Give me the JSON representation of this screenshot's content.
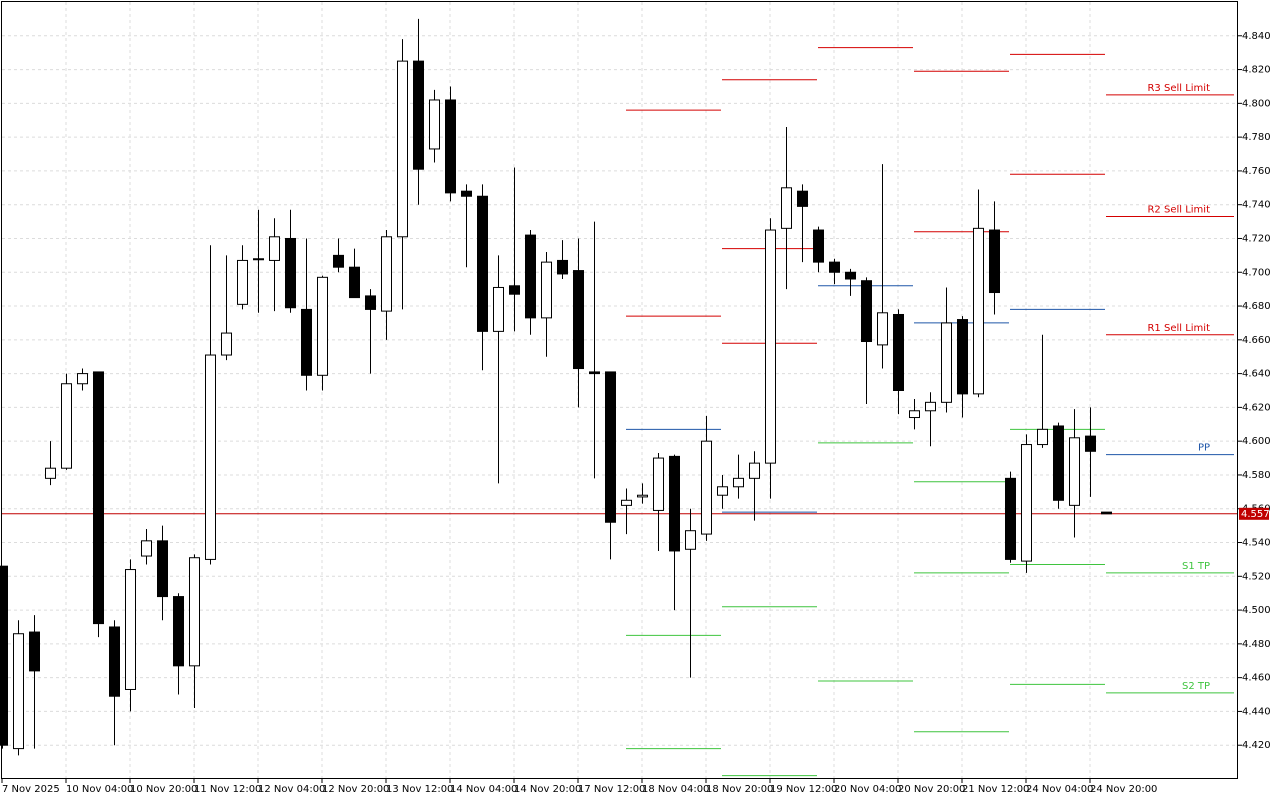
{
  "chart_data": {
    "type": "candlestick",
    "categories": [
      "7 Nov 2025",
      null,
      null,
      null,
      "10 Nov 04:00",
      null,
      null,
      null,
      "10 Nov 20:00",
      null,
      null,
      null,
      "11 Nov 12:00",
      null,
      null,
      null,
      "12 Nov 04:00",
      null,
      null,
      null,
      "12 Nov 20:00",
      null,
      null,
      null,
      "13 Nov 12:00",
      null,
      null,
      null,
      "14 Nov 04:00",
      null,
      null,
      null,
      "14 Nov 20:00",
      null,
      null,
      null,
      "17 Nov 12:00",
      null,
      null,
      null,
      "18 Nov 04:00",
      null,
      null,
      null,
      "18 Nov 20:00",
      null,
      null,
      null,
      "19 Nov 12:00",
      null,
      null,
      null,
      "20 Nov 04:00",
      null,
      null,
      null,
      "20 Nov 20:00",
      null,
      null,
      null,
      "21 Nov 12:00",
      null,
      null,
      null,
      "24 Nov 04:00",
      null,
      null,
      null,
      "24 Nov 20:00",
      null
    ],
    "open": [
      4.526,
      4.418,
      4.487,
      4.578,
      4.584,
      4.634,
      4.641,
      4.49,
      4.453,
      4.532,
      4.541,
      4.508,
      4.467,
      4.53,
      4.651,
      4.681,
      4.708,
      4.707,
      4.72,
      4.678,
      4.639,
      4.71,
      4.703,
      4.686,
      4.677,
      4.721,
      4.825,
      4.773,
      4.802,
      4.748,
      4.745,
      4.665,
      4.692,
      4.722,
      4.673,
      4.707,
      4.701,
      4.641,
      4.641,
      4.562,
      4.567,
      4.559,
      4.591,
      4.536,
      4.545,
      4.568,
      4.573,
      4.578,
      4.587,
      4.726,
      4.748,
      4.725,
      4.706,
      4.7,
      4.695,
      4.657,
      4.675,
      4.614,
      4.618,
      4.623,
      4.672,
      4.628,
      4.725,
      4.578,
      4.529,
      4.598,
      4.609,
      4.562,
      4.603,
      4.558
    ],
    "high": [
      4.526,
      4.494,
      4.497,
      4.6,
      4.64,
      4.643,
      4.641,
      4.494,
      4.53,
      4.548,
      4.55,
      4.51,
      4.533,
      4.716,
      4.71,
      4.716,
      4.737,
      4.732,
      4.737,
      4.72,
      4.698,
      4.72,
      4.714,
      4.69,
      4.725,
      4.838,
      4.85,
      4.808,
      4.81,
      4.752,
      4.752,
      4.71,
      4.762,
      4.725,
      4.712,
      4.719,
      4.72,
      4.73,
      4.641,
      4.572,
      4.575,
      4.593,
      4.592,
      4.56,
      4.615,
      4.58,
      4.592,
      4.594,
      4.732,
      4.786,
      4.752,
      4.727,
      4.708,
      4.702,
      4.697,
      4.764,
      4.678,
      4.625,
      4.629,
      4.691,
      4.674,
      4.749,
      4.742,
      4.582,
      4.604,
      4.663,
      4.611,
      4.619,
      4.62,
      4.558
    ],
    "low": [
      4.418,
      4.414,
      4.418,
      4.574,
      4.583,
      4.63,
      4.484,
      4.42,
      4.44,
      4.527,
      4.494,
      4.45,
      4.442,
      4.527,
      4.648,
      4.678,
      4.676,
      4.677,
      4.676,
      4.63,
      4.63,
      4.7,
      4.685,
      4.64,
      4.66,
      4.678,
      4.74,
      4.765,
      4.742,
      4.703,
      4.642,
      4.575,
      4.665,
      4.663,
      4.65,
      4.696,
      4.62,
      4.578,
      4.53,
      4.545,
      4.563,
      4.535,
      4.5,
      4.46,
      4.541,
      4.56,
      4.566,
      4.553,
      4.566,
      4.69,
      4.706,
      4.7,
      4.693,
      4.686,
      4.622,
      4.643,
      4.616,
      4.607,
      4.597,
      4.617,
      4.614,
      4.626,
      4.675,
      4.528,
      4.522,
      4.596,
      4.56,
      4.543,
      4.567,
      4.557
    ],
    "close": [
      4.42,
      4.486,
      4.464,
      4.584,
      4.634,
      4.64,
      4.492,
      4.449,
      4.524,
      4.541,
      4.508,
      4.467,
      4.531,
      4.651,
      4.664,
      4.707,
      4.708,
      4.721,
      4.679,
      4.639,
      4.697,
      4.703,
      4.685,
      4.678,
      4.721,
      4.825,
      4.761,
      4.802,
      4.747,
      4.745,
      4.665,
      4.691,
      4.687,
      4.673,
      4.706,
      4.699,
      4.643,
      4.64,
      4.552,
      4.565,
      4.568,
      4.59,
      4.535,
      4.547,
      4.6,
      4.573,
      4.578,
      4.587,
      4.725,
      4.75,
      4.739,
      4.706,
      4.7,
      4.696,
      4.659,
      4.676,
      4.63,
      4.618,
      4.623,
      4.67,
      4.628,
      4.726,
      4.688,
      4.53,
      4.598,
      4.607,
      4.565,
      4.602,
      4.594,
      4.557
    ],
    "levels": [
      {
        "name": "R3 Sell Limit",
        "color": "#d40000",
        "values": [
          null,
          4.814,
          null,
          null,
          null,
          4.805
        ]
      },
      {
        "name": "R2 Sell Limit",
        "color": "#d40000",
        "values": [
          4.796,
          4.714,
          null,
          4.819,
          4.829,
          4.733
        ]
      },
      {
        "name": "R1 Sell Limit",
        "color": "#d40000",
        "values": [
          4.674,
          4.658,
          4.833,
          4.724,
          4.758,
          4.663
        ]
      },
      {
        "name": "PP",
        "color": "#1f56a8",
        "values": [
          4.607,
          4.558,
          4.692,
          4.67,
          4.678,
          4.592
        ]
      },
      {
        "name": "S1 TP",
        "color": "#3fc43f",
        "values": [
          4.485,
          4.502,
          4.599,
          4.576,
          4.607,
          4.522
        ]
      },
      {
        "name": "S2 TP",
        "color": "#3fc43f",
        "values": [
          4.418,
          4.402,
          4.458,
          4.522,
          4.527,
          4.451
        ]
      },
      {
        "color": "#3fc43f",
        "values": [
          null,
          null,
          null,
          4.428,
          4.456,
          null
        ]
      }
    ],
    "current_price": 4.557,
    "ylim": [
      4.4,
      4.86
    ],
    "yticks": [
      {
        "value": 4.42,
        "label": "4.420"
      },
      {
        "value": 4.44,
        "label": "4.440"
      },
      {
        "value": 4.46,
        "label": "4.460"
      },
      {
        "value": 4.48,
        "label": "4.480"
      },
      {
        "value": 4.5,
        "label": "4.500"
      },
      {
        "value": 4.52,
        "label": "4.520"
      },
      {
        "value": 4.54,
        "label": "4.540"
      },
      {
        "value": 4.56,
        "label": "4.560"
      },
      {
        "value": 4.58,
        "label": "4.580"
      },
      {
        "value": 4.6,
        "label": "4.600"
      },
      {
        "value": 4.62,
        "label": "4.620"
      },
      {
        "value": 4.64,
        "label": "4.640"
      },
      {
        "value": 4.66,
        "label": "4.660"
      },
      {
        "value": 4.68,
        "label": "4.680"
      },
      {
        "value": 4.7,
        "label": "4.700"
      },
      {
        "value": 4.72,
        "label": "4.720"
      },
      {
        "value": 4.74,
        "label": "4.740"
      },
      {
        "value": 4.76,
        "label": "4.760"
      },
      {
        "value": 4.78,
        "label": "4.780"
      },
      {
        "value": 4.8,
        "label": "4.800"
      },
      {
        "value": 4.82,
        "label": "4.820"
      },
      {
        "value": 4.84,
        "label": "4.840"
      }
    ],
    "grid": true
  }
}
